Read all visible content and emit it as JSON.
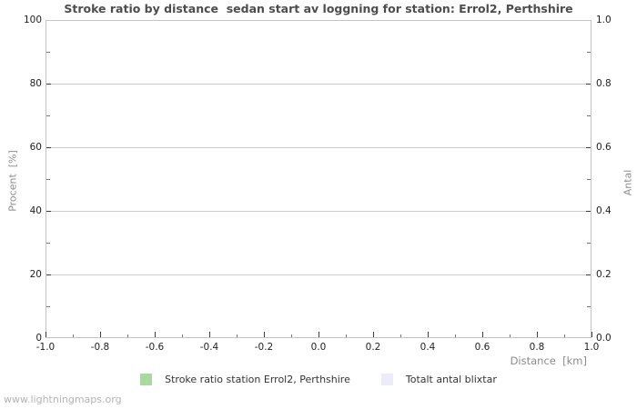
{
  "watermark": "www.lightningmaps.org",
  "colors": {
    "background": "#ffffff",
    "title_text": "#4d4d4d",
    "tick_label_text": "#1f1f1f",
    "axis_title_text": "#8c8c8c",
    "gridline": "#cccccc",
    "plot_border": "#c4c4c4",
    "tick_mark": "#3a3a3a",
    "legend_green": "#a9d9a0",
    "legend_lavender": "#ebebfa",
    "watermark_text": "#b3b3b3"
  },
  "chart_data": {
    "type": "line",
    "title": "Stroke ratio by distance  sedan start av loggning for station: Errol2, Perthshire",
    "x_axis": {
      "label": "Distance  [km]",
      "range": [
        -1.0,
        1.0
      ],
      "tick_labels": [
        "-1.0",
        "-0.8",
        "-0.6",
        "-0.4",
        "-0.2",
        "0.0",
        "0.2",
        "0.4",
        "0.6",
        "0.8",
        "1.0"
      ],
      "minor_tick_step": 0.1
    },
    "y_axis_left": {
      "label": "Procent  [%]",
      "range": [
        0,
        100
      ],
      "tick_labels": [
        "0",
        "20",
        "40",
        "60",
        "80",
        "100"
      ],
      "minor_tick_step": 10
    },
    "y_axis_right": {
      "label": "Antal",
      "range": [
        0.0,
        1.0
      ],
      "tick_labels": [
        "0.0",
        "0.2",
        "0.4",
        "0.6",
        "0.8",
        "1.0"
      ],
      "minor_tick_step": 0.1
    },
    "grid": "horizontal-only",
    "legend_position": "bottom-center",
    "legend": [
      {
        "label": "Stroke ratio station Errol2, Perthshire",
        "color": "#a9d9a0",
        "swatch": "green-square"
      },
      {
        "label": "Totalt antal blixtar",
        "color": "#ebebfa",
        "swatch": "lavender-square"
      }
    ],
    "series": [
      {
        "name": "Stroke ratio station Errol2, Perthshire",
        "axis": "left",
        "x": [],
        "values": []
      },
      {
        "name": "Totalt antal blixtar",
        "axis": "right",
        "x": [],
        "values": []
      }
    ],
    "note": "chart area is empty - no data plotted"
  }
}
